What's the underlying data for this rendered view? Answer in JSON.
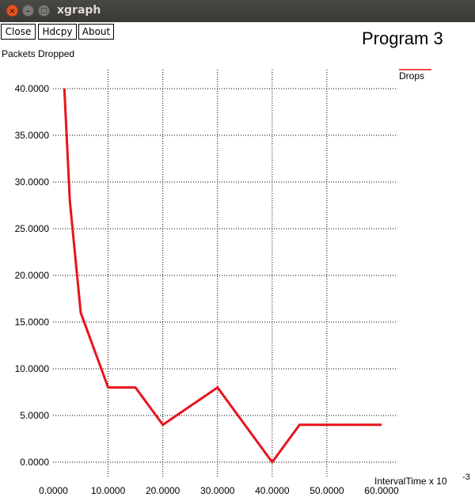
{
  "window": {
    "title": "xgraph",
    "controls": {
      "close": "×",
      "minimize": "–",
      "maximize": "□"
    }
  },
  "toolbar": {
    "close_label": "Close",
    "hdcpy_label": "Hdcpy",
    "about_label": "About"
  },
  "colors": {
    "series": "#e8141a",
    "titlebar": "#3c3b37",
    "grid": "#000000"
  },
  "chart_data": {
    "type": "line",
    "title": "Program 3",
    "ylabel": "Packets Dropped",
    "xlabel": "IntervalTime x 10",
    "xlabel_exponent": "-3",
    "xlim": [
      0,
      60
    ],
    "ylim": [
      0,
      40
    ],
    "x_ticks": [
      0,
      10,
      20,
      30,
      40,
      50,
      60
    ],
    "y_ticks": [
      0,
      5,
      10,
      15,
      20,
      25,
      30,
      35,
      40
    ],
    "x_tick_labels": [
      "0.0000",
      "10.0000",
      "20.0000",
      "30.0000",
      "40.0000",
      "50.0000",
      "60.0000"
    ],
    "y_tick_labels": [
      "0.0000",
      "5.0000",
      "10.0000",
      "15.0000",
      "20.0000",
      "25.0000",
      "30.0000",
      "35.0000",
      "40.0000"
    ],
    "grid": true,
    "legend_position": "top-right",
    "series": [
      {
        "name": "Drops",
        "x": [
          2,
          3,
          5,
          10,
          15,
          20,
          30,
          40,
          45,
          50,
          60
        ],
        "y": [
          40,
          28,
          16,
          8,
          8,
          4,
          8,
          0,
          4,
          4,
          4
        ]
      }
    ]
  }
}
